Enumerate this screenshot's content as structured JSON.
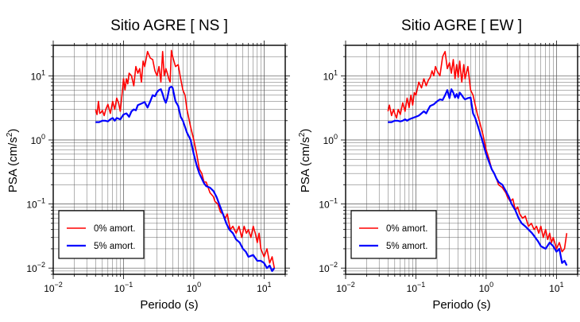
{
  "chart_data": [
    {
      "type": "line",
      "title": "Sitio AGRE [ NS ]",
      "xlabel": "Periodo (s)",
      "ylabel_main": "PSA (cm/s",
      "ylabel_sup": "2",
      "ylabel_end": ")",
      "x_scale": "log",
      "y_scale": "log",
      "xlim": [
        0.01,
        20
      ],
      "ylim": [
        0.008,
        30
      ],
      "grid": true,
      "legend_position": "bottom-left",
      "x_ticks": [
        {
          "v": 0.01,
          "base": "10",
          "exp": "−2"
        },
        {
          "v": 0.1,
          "base": "10",
          "exp": "−1"
        },
        {
          "v": 1,
          "base": "10",
          "exp": "0"
        },
        {
          "v": 10,
          "base": "10",
          "exp": "1"
        }
      ],
      "y_ticks": [
        {
          "v": 0.01,
          "base": "10",
          "exp": "−2"
        },
        {
          "v": 0.1,
          "base": "10",
          "exp": "−1"
        },
        {
          "v": 1,
          "base": "10",
          "exp": "0"
        },
        {
          "v": 10,
          "base": "10",
          "exp": "1"
        }
      ],
      "series": [
        {
          "name": "0% amort.",
          "color": "#ff0000",
          "x": [
            0.04,
            0.042,
            0.044,
            0.046,
            0.048,
            0.05,
            0.053,
            0.056,
            0.06,
            0.065,
            0.07,
            0.075,
            0.08,
            0.085,
            0.09,
            0.095,
            0.1,
            0.105,
            0.11,
            0.115,
            0.12,
            0.13,
            0.14,
            0.15,
            0.16,
            0.17,
            0.18,
            0.19,
            0.2,
            0.22,
            0.24,
            0.26,
            0.28,
            0.3,
            0.32,
            0.34,
            0.36,
            0.38,
            0.4,
            0.42,
            0.44,
            0.46,
            0.48,
            0.5,
            0.55,
            0.6,
            0.65,
            0.7,
            0.75,
            0.8,
            0.9,
            1.0,
            1.1,
            1.2,
            1.3,
            1.4,
            1.5,
            1.7,
            1.9,
            2.0,
            2.2,
            2.4,
            2.6,
            2.8,
            3.0,
            3.3,
            3.6,
            4.0,
            4.4,
            4.8,
            5.2,
            5.6,
            6.0,
            6.5,
            7.0,
            7.5,
            8.0,
            8.5,
            9.0,
            10.0,
            11.0,
            12.0,
            13.0,
            14.0
          ],
          "y": [
            3.0,
            2.5,
            4.0,
            2.6,
            2.7,
            2.9,
            2.4,
            3.0,
            3.6,
            2.6,
            4.0,
            3.0,
            4.5,
            3.8,
            2.8,
            5.0,
            9.0,
            6.0,
            9.0,
            7.5,
            11.0,
            10.0,
            7.0,
            14.0,
            11.0,
            13.0,
            8.0,
            17.0,
            14.0,
            24.0,
            19.0,
            18.0,
            12.0,
            10.0,
            14.0,
            8.0,
            24.0,
            10.0,
            13.0,
            11.0,
            9.0,
            8.0,
            25.0,
            20.0,
            14.0,
            15.0,
            9.0,
            6.0,
            5.0,
            3.0,
            1.6,
            1.0,
            0.6,
            0.35,
            0.3,
            0.22,
            0.22,
            0.15,
            0.13,
            0.11,
            0.1,
            0.075,
            0.07,
            0.06,
            0.07,
            0.04,
            0.045,
            0.035,
            0.045,
            0.03,
            0.045,
            0.035,
            0.04,
            0.03,
            0.045,
            0.035,
            0.025,
            0.035,
            0.02,
            0.015,
            0.02,
            0.012,
            0.015,
            0.01
          ]
        },
        {
          "name": "5% amort.",
          "color": "#0000ff",
          "x": [
            0.04,
            0.045,
            0.05,
            0.055,
            0.06,
            0.065,
            0.07,
            0.075,
            0.08,
            0.09,
            0.1,
            0.11,
            0.12,
            0.13,
            0.14,
            0.15,
            0.16,
            0.18,
            0.2,
            0.22,
            0.24,
            0.26,
            0.28,
            0.3,
            0.32,
            0.34,
            0.36,
            0.38,
            0.4,
            0.42,
            0.45,
            0.48,
            0.5,
            0.55,
            0.6,
            0.65,
            0.7,
            0.8,
            0.9,
            1.0,
            1.1,
            1.2,
            1.3,
            1.4,
            1.5,
            1.7,
            1.9,
            2.1,
            2.3,
            2.6,
            2.9,
            3.2,
            3.6,
            4.0,
            4.5,
            5.0,
            5.5,
            6.0,
            7.0,
            8.0,
            9.0,
            10.0,
            11.0,
            12.0,
            13.0,
            14.0
          ],
          "y": [
            1.9,
            1.9,
            2.0,
            2.0,
            1.95,
            2.1,
            2.2,
            2.0,
            2.2,
            2.1,
            2.5,
            2.6,
            2.3,
            2.8,
            3.0,
            2.9,
            3.5,
            3.7,
            3.9,
            3.2,
            4.0,
            5.0,
            4.8,
            5.6,
            6.0,
            6.2,
            5.2,
            4.3,
            3.8,
            4.5,
            6.5,
            6.8,
            6.5,
            4.0,
            3.4,
            2.3,
            2.0,
            1.3,
            1.0,
            0.6,
            0.4,
            0.3,
            0.25,
            0.21,
            0.19,
            0.18,
            0.16,
            0.13,
            0.1,
            0.07,
            0.05,
            0.04,
            0.035,
            0.028,
            0.025,
            0.02,
            0.018,
            0.015,
            0.016,
            0.013,
            0.013,
            0.012,
            0.01,
            0.011,
            0.009,
            0.01
          ]
        }
      ]
    },
    {
      "type": "line",
      "title": "Sitio AGRE [ EW ]",
      "xlabel": "Periodo (s)",
      "ylabel_main": "PSA (cm/s",
      "ylabel_sup": "2",
      "ylabel_end": ")",
      "x_scale": "log",
      "y_scale": "log",
      "xlim": [
        0.01,
        20
      ],
      "ylim": [
        0.008,
        30
      ],
      "grid": true,
      "legend_position": "bottom-left",
      "x_ticks": [
        {
          "v": 0.01,
          "base": "10",
          "exp": "−2"
        },
        {
          "v": 0.1,
          "base": "10",
          "exp": "−1"
        },
        {
          "v": 1,
          "base": "10",
          "exp": "0"
        },
        {
          "v": 10,
          "base": "10",
          "exp": "1"
        }
      ],
      "y_ticks": [
        {
          "v": 0.01,
          "base": "10",
          "exp": "−2"
        },
        {
          "v": 0.1,
          "base": "10",
          "exp": "−1"
        },
        {
          "v": 1,
          "base": "10",
          "exp": "0"
        },
        {
          "v": 10,
          "base": "10",
          "exp": "1"
        }
      ],
      "series": [
        {
          "name": "0% amort.",
          "color": "#ff0000",
          "x": [
            0.04,
            0.042,
            0.045,
            0.048,
            0.05,
            0.053,
            0.056,
            0.06,
            0.065,
            0.07,
            0.075,
            0.08,
            0.085,
            0.09,
            0.095,
            0.1,
            0.11,
            0.12,
            0.13,
            0.14,
            0.15,
            0.16,
            0.17,
            0.18,
            0.19,
            0.2,
            0.22,
            0.24,
            0.26,
            0.28,
            0.3,
            0.32,
            0.34,
            0.36,
            0.38,
            0.4,
            0.42,
            0.45,
            0.48,
            0.5,
            0.55,
            0.6,
            0.65,
            0.7,
            0.75,
            0.8,
            0.9,
            1.0,
            1.1,
            1.2,
            1.3,
            1.4,
            1.5,
            1.7,
            1.9,
            2.0,
            2.2,
            2.4,
            2.6,
            2.8,
            3.0,
            3.3,
            3.6,
            4.0,
            4.4,
            4.8,
            5.2,
            5.6,
            6.0,
            6.5,
            7.0,
            7.5,
            8.0,
            8.5,
            9.0,
            10.0,
            11.0,
            12.0,
            13.0,
            14.0
          ],
          "y": [
            2.8,
            3.5,
            2.4,
            3.0,
            2.6,
            2.2,
            3.0,
            2.5,
            3.8,
            2.8,
            4.5,
            3.2,
            5.0,
            3.5,
            5.5,
            5.0,
            8.0,
            6.5,
            9.0,
            7.0,
            8.5,
            9.5,
            12.0,
            10.0,
            14.0,
            12.0,
            10.0,
            20.0,
            24.0,
            13.0,
            16.0,
            11.0,
            18.0,
            9.0,
            15.0,
            9.5,
            17.0,
            8.0,
            15.0,
            9.0,
            14.0,
            6.0,
            5.0,
            3.5,
            2.5,
            2.0,
            1.2,
            0.7,
            0.5,
            0.35,
            0.3,
            0.25,
            0.2,
            0.18,
            0.15,
            0.13,
            0.11,
            0.12,
            0.08,
            0.09,
            0.07,
            0.06,
            0.065,
            0.045,
            0.05,
            0.04,
            0.045,
            0.035,
            0.045,
            0.03,
            0.04,
            0.028,
            0.035,
            0.025,
            0.03,
            0.02,
            0.025,
            0.018,
            0.02,
            0.035
          ]
        },
        {
          "name": "5% amort.",
          "color": "#0000ff",
          "x": [
            0.04,
            0.045,
            0.05,
            0.055,
            0.06,
            0.065,
            0.07,
            0.075,
            0.08,
            0.09,
            0.1,
            0.11,
            0.12,
            0.13,
            0.14,
            0.15,
            0.16,
            0.18,
            0.2,
            0.22,
            0.24,
            0.26,
            0.28,
            0.3,
            0.32,
            0.34,
            0.36,
            0.38,
            0.4,
            0.42,
            0.45,
            0.48,
            0.5,
            0.55,
            0.6,
            0.65,
            0.7,
            0.8,
            0.9,
            1.0,
            1.1,
            1.2,
            1.3,
            1.4,
            1.5,
            1.7,
            1.9,
            2.1,
            2.3,
            2.6,
            2.9,
            3.2,
            3.6,
            4.0,
            4.5,
            5.0,
            5.5,
            6.0,
            7.0,
            8.0,
            9.0,
            10.0,
            11.0,
            12.0,
            13.0,
            14.0
          ],
          "y": [
            1.9,
            1.9,
            2.0,
            2.0,
            1.95,
            2.0,
            2.1,
            2.0,
            2.1,
            2.2,
            2.3,
            2.4,
            2.6,
            2.8,
            2.6,
            3.0,
            3.4,
            3.6,
            4.0,
            4.3,
            4.2,
            5.0,
            6.0,
            4.5,
            6.2,
            5.5,
            4.6,
            5.2,
            4.5,
            5.5,
            5.0,
            4.5,
            4.3,
            4.5,
            4.6,
            2.6,
            2.2,
            1.4,
            0.9,
            0.6,
            0.45,
            0.35,
            0.3,
            0.25,
            0.22,
            0.2,
            0.16,
            0.13,
            0.1,
            0.08,
            0.06,
            0.05,
            0.045,
            0.04,
            0.035,
            0.03,
            0.026,
            0.022,
            0.02,
            0.025,
            0.022,
            0.018,
            0.02,
            0.012,
            0.013,
            0.011
          ]
        }
      ]
    }
  ]
}
